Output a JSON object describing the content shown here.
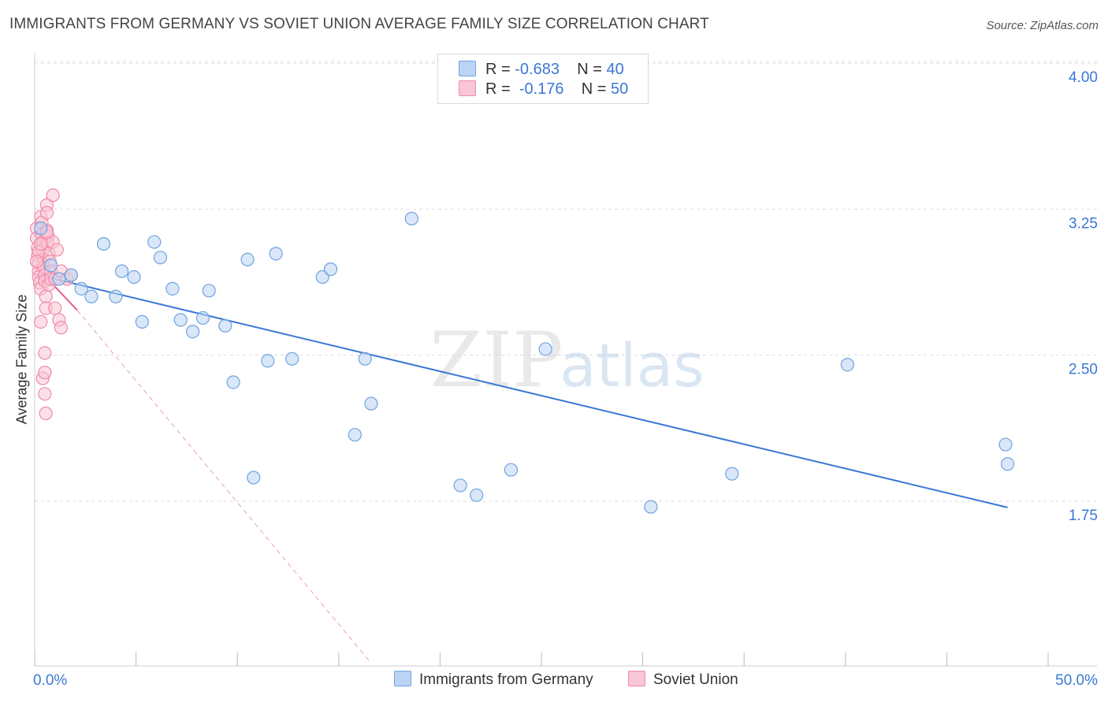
{
  "title": "IMMIGRANTS FROM GERMANY VS SOVIET UNION AVERAGE FAMILY SIZE CORRELATION CHART",
  "source": "Source: ZipAtlas.com",
  "watermark": {
    "zip": "ZIP",
    "atlas": "atlas"
  },
  "legend": {
    "rows": [
      {
        "r_label": "R =",
        "r_value": "-0.683",
        "n_label": "N =",
        "n_value": "40",
        "color": "#6fa3e0",
        "fill": "#bcd4f3"
      },
      {
        "r_label": "R =",
        "r_value": "-0.176",
        "n_label": "N =",
        "n_value": "50",
        "color": "#f08aa8",
        "fill": "#f9c6d5"
      }
    ]
  },
  "bottom_legend": [
    {
      "label": "Immigrants from Germany",
      "color": "#6fa3e0",
      "fill": "#bcd4f3"
    },
    {
      "label": "Soviet Union",
      "color": "#f08aa8",
      "fill": "#f9c6d5"
    }
  ],
  "chart_data": {
    "type": "scatter",
    "title": "IMMIGRANTS FROM GERMANY VS SOVIET UNION AVERAGE FAMILY SIZE CORRELATION CHART",
    "xlabel": "",
    "ylabel": "Average Family Size",
    "xlim": [
      0,
      50
    ],
    "ylim": [
      1.0,
      4.15
    ],
    "x_tick_labels": [
      "0.0%",
      "50.0%"
    ],
    "y_ticks": [
      1.75,
      2.5,
      3.25,
      4.0
    ],
    "y_tick_labels": [
      "1.75",
      "2.50",
      "3.25",
      "4.00"
    ],
    "grid": true,
    "series": [
      {
        "name": "Immigrants from Germany",
        "color": "#3a78d4",
        "fill": "#bcd4f3",
        "stroke": "#6fa3e0",
        "points": [
          [
            0.3,
            3.22
          ],
          [
            0.8,
            3.03
          ],
          [
            1.2,
            2.96
          ],
          [
            1.8,
            2.98
          ],
          [
            2.3,
            2.91
          ],
          [
            2.8,
            2.87
          ],
          [
            3.4,
            3.14
          ],
          [
            4.0,
            2.87
          ],
          [
            4.3,
            3.0
          ],
          [
            4.9,
            2.97
          ],
          [
            5.3,
            2.74
          ],
          [
            5.9,
            3.15
          ],
          [
            6.2,
            3.07
          ],
          [
            6.8,
            2.91
          ],
          [
            7.2,
            2.75
          ],
          [
            7.8,
            2.69
          ],
          [
            8.3,
            2.76
          ],
          [
            8.6,
            2.9
          ],
          [
            9.4,
            2.72
          ],
          [
            9.8,
            2.43
          ],
          [
            10.5,
            3.06
          ],
          [
            10.8,
            1.94
          ],
          [
            11.5,
            2.54
          ],
          [
            11.9,
            3.09
          ],
          [
            12.7,
            2.55
          ],
          [
            14.2,
            2.97
          ],
          [
            14.6,
            3.01
          ],
          [
            15.8,
            2.16
          ],
          [
            16.3,
            2.55
          ],
          [
            16.6,
            2.32
          ],
          [
            18.6,
            3.27
          ],
          [
            21.0,
            1.9
          ],
          [
            21.8,
            1.85
          ],
          [
            23.5,
            1.98
          ],
          [
            25.2,
            2.6
          ],
          [
            30.4,
            1.79
          ],
          [
            34.4,
            1.96
          ],
          [
            40.1,
            2.52
          ],
          [
            47.9,
            2.11
          ],
          [
            48.0,
            2.01
          ]
        ],
        "trend": {
          "x": [
            0.0,
            48.0
          ],
          "y": [
            2.985,
            1.787
          ]
        }
      },
      {
        "name": "Soviet Union",
        "color": "#e0608a",
        "fill": "#f9c6d5",
        "stroke": "#f08aa8",
        "points": [
          [
            0.1,
            3.22
          ],
          [
            0.1,
            3.17
          ],
          [
            0.15,
            3.12
          ],
          [
            0.15,
            3.08
          ],
          [
            0.2,
            3.04
          ],
          [
            0.2,
            3.0
          ],
          [
            0.2,
            2.97
          ],
          [
            0.25,
            2.94
          ],
          [
            0.3,
            2.91
          ],
          [
            0.3,
            3.28
          ],
          [
            0.35,
            3.25
          ],
          [
            0.35,
            3.19
          ],
          [
            0.4,
            3.15
          ],
          [
            0.4,
            3.11
          ],
          [
            0.45,
            3.06
          ],
          [
            0.45,
            3.02
          ],
          [
            0.5,
            2.98
          ],
          [
            0.5,
            2.95
          ],
          [
            0.55,
            2.87
          ],
          [
            0.55,
            2.81
          ],
          [
            0.6,
            3.34
          ],
          [
            0.6,
            3.21
          ],
          [
            0.65,
            3.18
          ],
          [
            0.65,
            3.14
          ],
          [
            0.7,
            3.09
          ],
          [
            0.7,
            2.93
          ],
          [
            0.75,
            3.05
          ],
          [
            0.8,
            3.0
          ],
          [
            0.8,
            2.96
          ],
          [
            0.3,
            2.74
          ],
          [
            0.4,
            2.45
          ],
          [
            0.5,
            2.48
          ],
          [
            0.5,
            2.37
          ],
          [
            0.5,
            2.58
          ],
          [
            0.55,
            2.27
          ],
          [
            0.6,
            3.3
          ],
          [
            0.9,
            3.39
          ],
          [
            0.9,
            3.15
          ],
          [
            1.0,
            2.81
          ],
          [
            1.0,
            2.96
          ],
          [
            1.1,
            3.11
          ],
          [
            1.2,
            2.75
          ],
          [
            1.3,
            2.71
          ],
          [
            1.3,
            3.0
          ],
          [
            1.6,
            2.96
          ],
          [
            1.8,
            2.98
          ],
          [
            0.2,
            3.1
          ],
          [
            0.3,
            3.14
          ],
          [
            0.6,
            3.2
          ],
          [
            0.1,
            3.05
          ]
        ],
        "trend": {
          "x": [
            0.0,
            2.1
          ],
          "y": [
            3.03,
            2.8
          ]
        },
        "trend_extended": {
          "x": [
            2.1,
            16.5
          ],
          "y": [
            2.8,
            1.0
          ]
        }
      }
    ]
  }
}
